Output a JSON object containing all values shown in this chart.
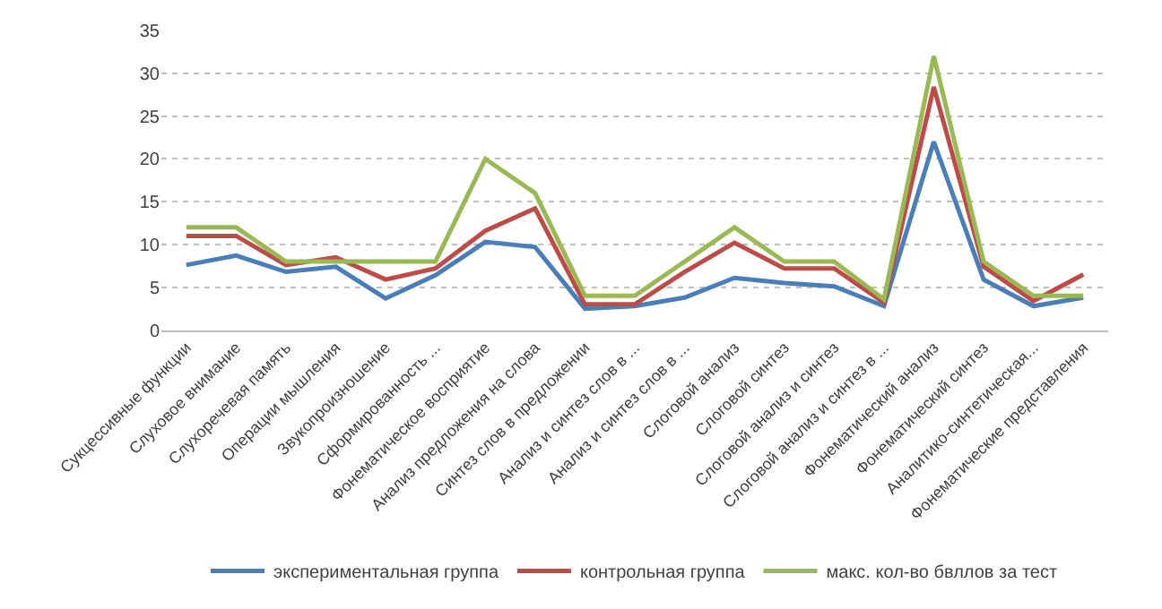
{
  "chart_data": {
    "type": "line",
    "categories": [
      "Сукцессивные функции",
      "Слуховое внимание",
      "Слухоречевая память",
      "Операции мышления",
      "Звукопроизношение",
      "Сформированность ...",
      "Фонематическое восприятие",
      "Анализ предложения на слова",
      "Синтез слов в предложении",
      "Анализ и синтез слов в ...",
      "Анализ и синтез слов в ...",
      "Слоговой анализ",
      "Слоговой синтез",
      "Слоговой анализ и синтез",
      "Слоговой анализ и синтез в ...",
      "Фонематический анализ",
      "Фонематический синтез",
      "Аналитико-синтетическая...",
      "Фонематические представления"
    ],
    "series": [
      {
        "name": "экспериментальная группа",
        "color": "#4a7ebb",
        "values": [
          7.6,
          8.7,
          6.8,
          7.4,
          3.7,
          6.4,
          10.3,
          9.7,
          2.5,
          2.8,
          3.8,
          6.1,
          5.5,
          5.1,
          2.8,
          22,
          5.9,
          2.8,
          3.8
        ]
      },
      {
        "name": "контрольная группа",
        "color": "#be4b48",
        "values": [
          11,
          11,
          7.6,
          8.5,
          5.9,
          7.2,
          11.6,
          14.2,
          3,
          3,
          6.8,
          10.2,
          7.2,
          7.2,
          3.2,
          28.4,
          7.4,
          3.4,
          6.5
        ]
      },
      {
        "name": "макс. кол-во бвллов за тест",
        "color": "#98b954",
        "values": [
          12,
          12,
          8,
          8,
          8,
          8,
          20,
          16,
          4,
          4,
          8,
          12,
          8,
          8,
          3.6,
          32,
          8,
          4,
          4
        ]
      }
    ],
    "ylim": [
      0,
      35
    ],
    "yticks": [
      0,
      5,
      10,
      15,
      20,
      25,
      30,
      35
    ],
    "grid": "y",
    "legend": "bottom",
    "line_style": "solid",
    "marker": "none"
  }
}
